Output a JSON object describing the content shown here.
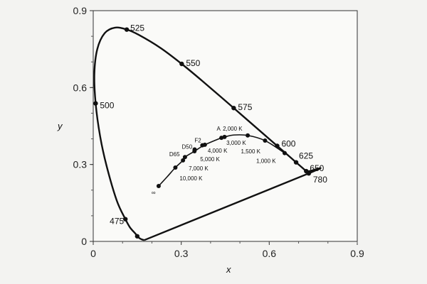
{
  "chart_data": {
    "type": "line",
    "title": "",
    "xlabel": "x",
    "ylabel": "y",
    "xlim": [
      0,
      0.9
    ],
    "ylim": [
      0,
      0.9
    ],
    "xticks": [
      "0",
      "0.3",
      "0.6",
      "0.9"
    ],
    "yticks": [
      "0",
      "0.3",
      "0.6",
      "0.9"
    ],
    "grid": false,
    "series": [
      {
        "kind": "spectral-locus",
        "x": [
          0.1741,
          0.165,
          0.155,
          0.144,
          0.125,
          0.1096,
          0.08,
          0.0454,
          0.0235,
          0.0082,
          0.0039,
          0.0139,
          0.0389,
          0.0743,
          0.1142,
          0.1547,
          0.2296,
          0.3016,
          0.3731,
          0.4788,
          0.5752,
          0.627,
          0.66,
          0.6915,
          0.726,
          0.7347,
          0.1741
        ],
        "y": [
          0.005,
          0.008,
          0.015,
          0.03,
          0.055,
          0.0868,
          0.16,
          0.295,
          0.41,
          0.5384,
          0.6548,
          0.7502,
          0.812,
          0.8338,
          0.8262,
          0.8059,
          0.7543,
          0.6923,
          0.6245,
          0.5202,
          0.4242,
          0.3725,
          0.34,
          0.3083,
          0.274,
          0.2653,
          0.005
        ]
      },
      {
        "kind": "planckian-locus",
        "x": [
          0.223,
          0.252,
          0.28,
          0.306,
          0.3127,
          0.3451,
          0.3805,
          0.4369,
          0.4476,
          0.4795,
          0.5266,
          0.5857,
          0.6526
        ],
        "y": [
          0.216,
          0.252,
          0.288,
          0.316,
          0.329,
          0.3516,
          0.3768,
          0.4041,
          0.4074,
          0.415,
          0.4133,
          0.3931,
          0.3444
        ]
      }
    ],
    "spectral_markers": [
      {
        "label": "475",
        "x": 0.1096,
        "y": 0.0868
      },
      {
        "label": "500",
        "x": 0.0082,
        "y": 0.5384
      },
      {
        "label": "525",
        "x": 0.1142,
        "y": 0.8262
      },
      {
        "label": "550",
        "x": 0.3016,
        "y": 0.6923
      },
      {
        "label": "575",
        "x": 0.4788,
        "y": 0.5202
      },
      {
        "label": "600",
        "x": 0.627,
        "y": 0.3725
      },
      {
        "label": "625",
        "x": 0.6915,
        "y": 0.3083
      },
      {
        "label": "650",
        "x": 0.726,
        "y": 0.274
      },
      {
        "label": "780",
        "x": 0.7347,
        "y": 0.2653
      },
      {
        "label": "",
        "x": 0.15,
        "y": 0.02
      }
    ],
    "planck_markers": [
      {
        "label": "∞",
        "x": 0.223,
        "y": 0.216
      },
      {
        "label": "10,000 K",
        "x": 0.28,
        "y": 0.288
      },
      {
        "label": "7,000 K",
        "x": 0.306,
        "y": 0.316
      },
      {
        "label": "D65",
        "x": 0.3127,
        "y": 0.329
      },
      {
        "label": "5,000 K",
        "x": 0.3451,
        "y": 0.3516
      },
      {
        "label": "D50",
        "x": 0.3457,
        "y": 0.3585
      },
      {
        "label": "F2",
        "x": 0.372,
        "y": 0.375
      },
      {
        "label": "4,000 K",
        "x": 0.3805,
        "y": 0.3768
      },
      {
        "label": "3,000 K",
        "x": 0.4369,
        "y": 0.4041
      },
      {
        "label": "A",
        "x": 0.4476,
        "y": 0.4074
      },
      {
        "label": "2,000 K",
        "x": 0.5266,
        "y": 0.4133
      },
      {
        "label": "1,500 K",
        "x": 0.5857,
        "y": 0.3931
      },
      {
        "label": "1,000 K",
        "x": 0.6526,
        "y": 0.3444
      }
    ]
  }
}
